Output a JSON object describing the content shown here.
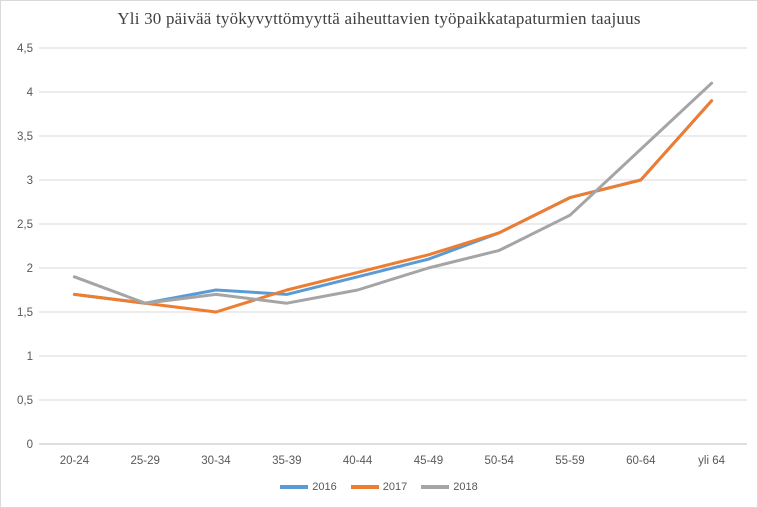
{
  "chart_data": {
    "type": "line",
    "title": "Yli 30 päivää työkyvyttömyyttä aiheuttavien työpaikkatapaturmien taajuus",
    "categories": [
      "20-24",
      "25-29",
      "30-34",
      "35-39",
      "40-44",
      "45-49",
      "50-54",
      "55-59",
      "60-64",
      "yli 64"
    ],
    "series": [
      {
        "name": "2016",
        "color": "#5B9BD5",
        "values": [
          1.7,
          1.6,
          1.75,
          1.7,
          1.9,
          2.1,
          2.4,
          2.8,
          3.0,
          3.9
        ]
      },
      {
        "name": "2017",
        "color": "#ED7D31",
        "values": [
          1.7,
          1.6,
          1.5,
          1.75,
          1.95,
          2.15,
          2.4,
          2.8,
          3.0,
          3.9
        ]
      },
      {
        "name": "2018",
        "color": "#A5A5A5",
        "values": [
          1.9,
          1.6,
          1.7,
          1.6,
          1.75,
          2.0,
          2.2,
          2.6,
          3.35,
          4.1
        ]
      }
    ],
    "xlabel": "",
    "ylabel": "",
    "ylim": [
      0,
      4.5
    ],
    "ytick_values": [
      0,
      0.5,
      1,
      1.5,
      2,
      2.5,
      3,
      3.5,
      4,
      4.5
    ],
    "ytick_labels": [
      "0",
      "0,5",
      "1",
      "1,5",
      "2",
      "2,5",
      "3",
      "3,5",
      "4",
      "4,5"
    ],
    "grid": true,
    "legend_position": "bottom",
    "legend_entries": [
      "2016",
      "2017",
      "2018"
    ]
  },
  "style": {
    "gridline_color": "#d9d9d9",
    "axis_line_color": "#bfbfbf",
    "tick_label_color": "#595959",
    "title_color": "#3f3f3f",
    "background": "#ffffff",
    "line_width": 3
  }
}
